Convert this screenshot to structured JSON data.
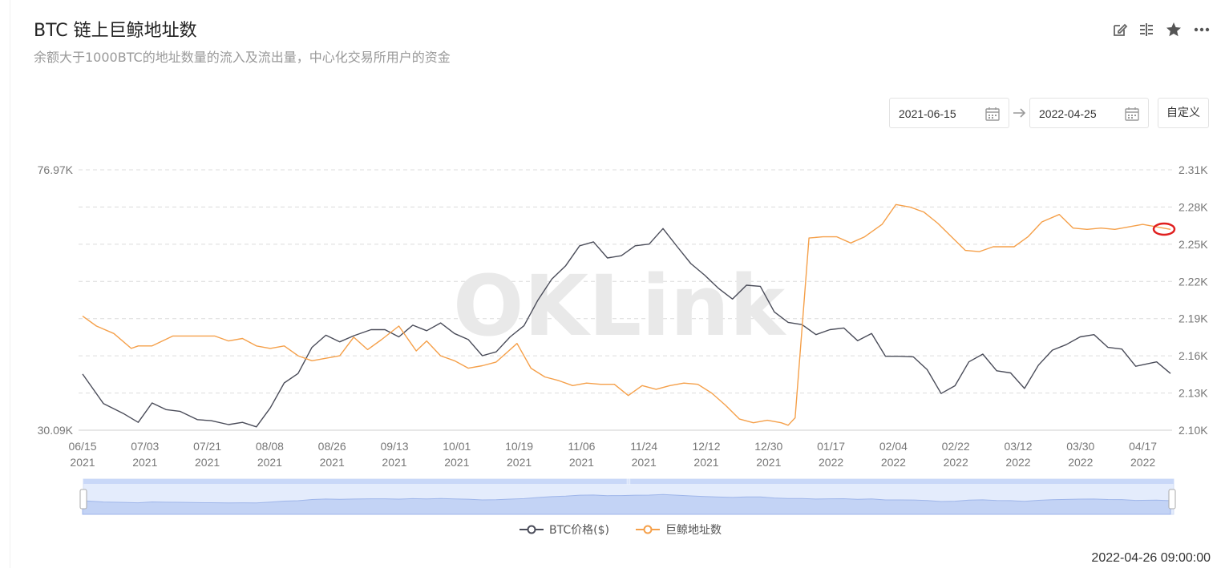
{
  "header": {
    "title": "BTC 链上巨鲸地址数",
    "subtitle": "余额大于1000BTC的地址数量的流入及流出量，中心化交易所用户的资金"
  },
  "toolbar": {
    "icons": [
      "edit-icon",
      "compare-icon",
      "star-icon",
      "more-icon"
    ]
  },
  "date_range": {
    "start": "2021-06-15",
    "end": "2022-04-25",
    "custom_label": "自定义"
  },
  "footer": {
    "timestamp": "2022-04-26 09:00:00"
  },
  "colors": {
    "btc": "#4a4c59",
    "whale": "#f5a04a",
    "grid": "#dcdcdc",
    "slider": "#c9d8f8",
    "highlight": "#e02020"
  },
  "chart_data": {
    "type": "line",
    "watermark": "OKLink",
    "x_tick_labels": [
      [
        "06/15",
        "2021"
      ],
      [
        "07/03",
        "2021"
      ],
      [
        "07/21",
        "2021"
      ],
      [
        "08/08",
        "2021"
      ],
      [
        "08/26",
        "2021"
      ],
      [
        "09/13",
        "2021"
      ],
      [
        "10/01",
        "2021"
      ],
      [
        "10/19",
        "2021"
      ],
      [
        "11/06",
        "2021"
      ],
      [
        "11/24",
        "2021"
      ],
      [
        "12/12",
        "2021"
      ],
      [
        "12/30",
        "2021"
      ],
      [
        "01/17",
        "2022"
      ],
      [
        "02/04",
        "2022"
      ],
      [
        "02/22",
        "2022"
      ],
      [
        "03/12",
        "2022"
      ],
      [
        "03/30",
        "2022"
      ],
      [
        "04/17",
        "2022"
      ]
    ],
    "left_axis": {
      "tick_labels": [
        "76.97K",
        "30.09K"
      ],
      "range": [
        30090,
        76970
      ]
    },
    "right_axis": {
      "tick_labels": [
        "2.31K",
        "2.28K",
        "2.25K",
        "2.22K",
        "2.19K",
        "2.16K",
        "2.13K",
        "2.10K"
      ],
      "range": [
        2100,
        2310
      ]
    },
    "legend": {
      "placement": "bottom-center"
    },
    "series": [
      {
        "name": "BTC价格($)",
        "axis": "left",
        "x": [
          0,
          6,
          12,
          16,
          20,
          24,
          28,
          33,
          37,
          42,
          46,
          50,
          54,
          58,
          62,
          66,
          70,
          74,
          78,
          83,
          87,
          91,
          95,
          99,
          103,
          107,
          111,
          115,
          119,
          123,
          127,
          131,
          135,
          139,
          143,
          147,
          151,
          155,
          159,
          163,
          167,
          171,
          175,
          179,
          183,
          187,
          191,
          195,
          199,
          203,
          207,
          211,
          215,
          219,
          223,
          227,
          231,
          235,
          239,
          243,
          247,
          251,
          255,
          259,
          263,
          267,
          271,
          275,
          279,
          283,
          287,
          291,
          295,
          299,
          303,
          309,
          313
        ],
        "values": [
          40200,
          34900,
          33000,
          31500,
          35000,
          33800,
          33500,
          32000,
          31800,
          31100,
          31500,
          30700,
          34100,
          38600,
          40300,
          45000,
          47200,
          46000,
          47100,
          48200,
          48200,
          46900,
          49000,
          48000,
          49400,
          47500,
          46400,
          43500,
          44200,
          46900,
          48900,
          53500,
          57300,
          59700,
          63300,
          64000,
          61100,
          61500,
          63300,
          63600,
          66400,
          63200,
          60100,
          58000,
          55600,
          53700,
          56200,
          56000,
          51400,
          49500,
          49100,
          47300,
          48200,
          48500,
          46200,
          47500,
          43400,
          43400,
          43300,
          41000,
          36700,
          38100,
          42400,
          43800,
          40800,
          40400,
          37600,
          41800,
          44500,
          45500,
          46900,
          47300,
          45000,
          44700,
          41600,
          42400,
          40300
        ]
      },
      {
        "name": "巨鲸地址数",
        "axis": "right",
        "x": [
          0,
          4,
          9,
          14,
          16,
          20,
          26,
          28,
          33,
          38,
          42,
          46,
          50,
          54,
          58,
          62,
          66,
          70,
          74,
          78,
          82,
          86,
          91,
          96,
          99,
          103,
          107,
          111,
          115,
          119,
          125,
          129,
          133,
          137,
          141,
          145,
          149,
          153,
          157,
          161,
          165,
          169,
          173,
          177,
          181,
          185,
          189,
          193,
          197,
          201,
          203,
          205,
          209,
          213,
          217,
          221,
          225,
          230,
          234,
          238,
          242,
          246,
          250,
          254,
          258,
          262,
          268,
          272,
          276,
          281,
          285,
          289,
          293,
          297,
          301,
          305,
          309,
          313
        ],
        "values": [
          2192,
          2184,
          2178,
          2166,
          2168,
          2168,
          2176,
          2176,
          2176,
          2176,
          2172,
          2174,
          2168,
          2166,
          2168,
          2160,
          2156,
          2158,
          2160,
          2175,
          2165,
          2173,
          2184,
          2164,
          2172,
          2160,
          2156,
          2150,
          2152,
          2155,
          2170,
          2150,
          2143,
          2140,
          2136,
          2138,
          2137,
          2137,
          2128,
          2136,
          2133,
          2136,
          2138,
          2137,
          2130,
          2120,
          2109,
          2106,
          2108,
          2106,
          2104,
          2110,
          2255,
          2256,
          2256,
          2251,
          2256,
          2266,
          2282,
          2280,
          2276,
          2267,
          2256,
          2245,
          2244,
          2248,
          2248,
          2256,
          2268,
          2274,
          2263,
          2262,
          2263,
          2262,
          2264,
          2266,
          2264,
          2262
        ]
      }
    ]
  }
}
